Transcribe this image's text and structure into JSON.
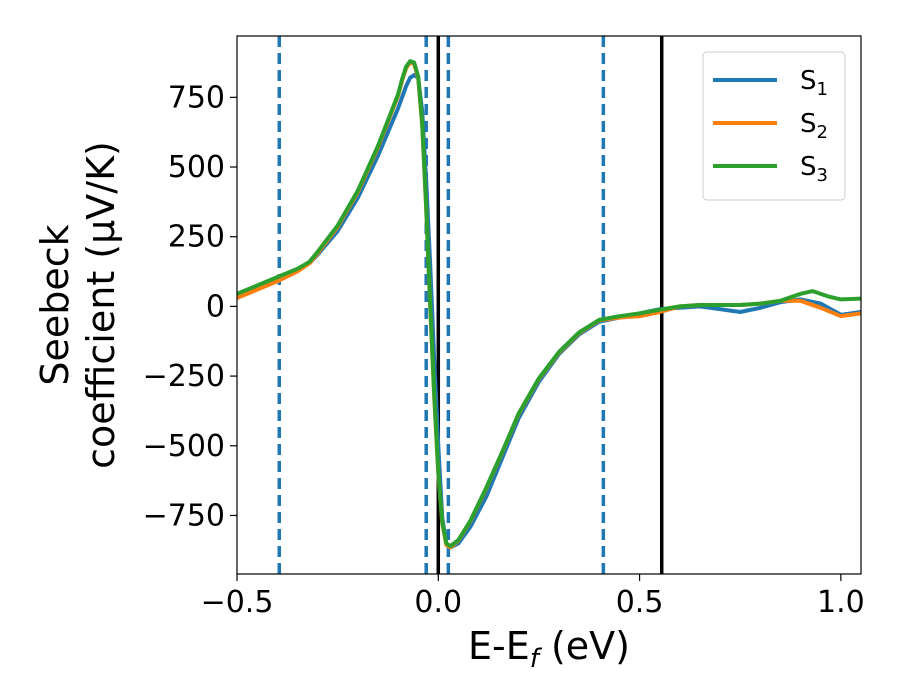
{
  "chart_data": {
    "type": "line",
    "xlabel": {
      "main": "E-E",
      "sub": "f",
      "tail": " (eV)"
    },
    "ylabel": {
      "line1": "Seebeck",
      "line2": "coefficient  (μV/K)"
    },
    "xlim": [
      -0.5,
      1.05
    ],
    "ylim": [
      -960,
      970
    ],
    "xticks": [
      -0.5,
      0.0,
      0.5,
      1.0
    ],
    "xtick_labels": [
      "−0.5",
      "0.0",
      "0.5",
      "1.0"
    ],
    "yticks": [
      -750,
      -500,
      -250,
      0,
      250,
      500,
      750
    ],
    "ytick_labels": [
      "−750",
      "−500",
      "−250",
      "0",
      "250",
      "500",
      "750"
    ],
    "grid": false,
    "legend_position": "top-right",
    "vlines_dashed": [
      -0.395,
      -0.03,
      0.025,
      0.41
    ],
    "vlines_solid": [
      0.0,
      0.555
    ],
    "series": [
      {
        "name": "S",
        "sub": "1",
        "color": "#1f77b4",
        "points": [
          [
            -0.5,
            40
          ],
          [
            -0.45,
            70
          ],
          [
            -0.4,
            100
          ],
          [
            -0.35,
            130
          ],
          [
            -0.32,
            155
          ],
          [
            -0.3,
            185
          ],
          [
            -0.25,
            270
          ],
          [
            -0.2,
            390
          ],
          [
            -0.15,
            540
          ],
          [
            -0.1,
            710
          ],
          [
            -0.08,
            790
          ],
          [
            -0.07,
            820
          ],
          [
            -0.06,
            830
          ],
          [
            -0.05,
            820
          ],
          [
            -0.04,
            700
          ],
          [
            -0.03,
            450
          ],
          [
            -0.02,
            150
          ],
          [
            -0.01,
            -200
          ],
          [
            0.0,
            -500
          ],
          [
            0.01,
            -760
          ],
          [
            0.02,
            -850
          ],
          [
            0.03,
            -865
          ],
          [
            0.05,
            -850
          ],
          [
            0.08,
            -790
          ],
          [
            0.12,
            -680
          ],
          [
            0.16,
            -540
          ],
          [
            0.2,
            -400
          ],
          [
            0.25,
            -270
          ],
          [
            0.3,
            -170
          ],
          [
            0.35,
            -100
          ],
          [
            0.4,
            -55
          ],
          [
            0.45,
            -40
          ],
          [
            0.5,
            -25
          ],
          [
            0.55,
            -10
          ],
          [
            0.6,
            -5
          ],
          [
            0.65,
            0
          ],
          [
            0.7,
            -10
          ],
          [
            0.75,
            -20
          ],
          [
            0.8,
            -5
          ],
          [
            0.85,
            15
          ],
          [
            0.9,
            25
          ],
          [
            0.95,
            10
          ],
          [
            1.0,
            -30
          ],
          [
            1.05,
            -20
          ]
        ]
      },
      {
        "name": "S",
        "sub": "2",
        "color": "#ff7f0e",
        "points": [
          [
            -0.5,
            30
          ],
          [
            -0.45,
            60
          ],
          [
            -0.4,
            90
          ],
          [
            -0.35,
            125
          ],
          [
            -0.32,
            155
          ],
          [
            -0.3,
            190
          ],
          [
            -0.25,
            285
          ],
          [
            -0.2,
            410
          ],
          [
            -0.15,
            570
          ],
          [
            -0.1,
            755
          ],
          [
            -0.09,
            810
          ],
          [
            -0.08,
            855
          ],
          [
            -0.07,
            875
          ],
          [
            -0.06,
            870
          ],
          [
            -0.05,
            820
          ],
          [
            -0.04,
            650
          ],
          [
            -0.03,
            350
          ],
          [
            -0.02,
            0
          ],
          [
            -0.01,
            -330
          ],
          [
            0.0,
            -600
          ],
          [
            0.01,
            -780
          ],
          [
            0.02,
            -855
          ],
          [
            0.03,
            -865
          ],
          [
            0.05,
            -840
          ],
          [
            0.08,
            -770
          ],
          [
            0.12,
            -650
          ],
          [
            0.16,
            -520
          ],
          [
            0.2,
            -385
          ],
          [
            0.25,
            -260
          ],
          [
            0.3,
            -165
          ],
          [
            0.35,
            -95
          ],
          [
            0.4,
            -50
          ],
          [
            0.45,
            -40
          ],
          [
            0.5,
            -35
          ],
          [
            0.55,
            -20
          ],
          [
            0.6,
            0
          ],
          [
            0.65,
            5
          ],
          [
            0.7,
            5
          ],
          [
            0.75,
            5
          ],
          [
            0.8,
            10
          ],
          [
            0.85,
            20
          ],
          [
            0.9,
            20
          ],
          [
            0.95,
            -5
          ],
          [
            1.0,
            -35
          ],
          [
            1.05,
            -25
          ]
        ]
      },
      {
        "name": "S",
        "sub": "3",
        "color": "#2ca02c",
        "points": [
          [
            -0.5,
            45
          ],
          [
            -0.45,
            75
          ],
          [
            -0.4,
            105
          ],
          [
            -0.35,
            135
          ],
          [
            -0.32,
            160
          ],
          [
            -0.3,
            195
          ],
          [
            -0.25,
            290
          ],
          [
            -0.2,
            415
          ],
          [
            -0.15,
            575
          ],
          [
            -0.1,
            760
          ],
          [
            -0.09,
            815
          ],
          [
            -0.08,
            860
          ],
          [
            -0.07,
            880
          ],
          [
            -0.06,
            875
          ],
          [
            -0.05,
            825
          ],
          [
            -0.04,
            655
          ],
          [
            -0.03,
            355
          ],
          [
            -0.02,
            5
          ],
          [
            -0.01,
            -325
          ],
          [
            0.0,
            -595
          ],
          [
            0.01,
            -775
          ],
          [
            0.02,
            -850
          ],
          [
            0.03,
            -860
          ],
          [
            0.05,
            -838
          ],
          [
            0.08,
            -768
          ],
          [
            0.12,
            -648
          ],
          [
            0.16,
            -518
          ],
          [
            0.2,
            -383
          ],
          [
            0.25,
            -258
          ],
          [
            0.3,
            -163
          ],
          [
            0.35,
            -93
          ],
          [
            0.4,
            -48
          ],
          [
            0.45,
            -35
          ],
          [
            0.5,
            -25
          ],
          [
            0.55,
            -12
          ],
          [
            0.6,
            0
          ],
          [
            0.65,
            5
          ],
          [
            0.7,
            5
          ],
          [
            0.75,
            5
          ],
          [
            0.8,
            10
          ],
          [
            0.85,
            20
          ],
          [
            0.9,
            45
          ],
          [
            0.93,
            55
          ],
          [
            0.97,
            35
          ],
          [
            1.0,
            25
          ],
          [
            1.05,
            28
          ]
        ]
      }
    ]
  }
}
